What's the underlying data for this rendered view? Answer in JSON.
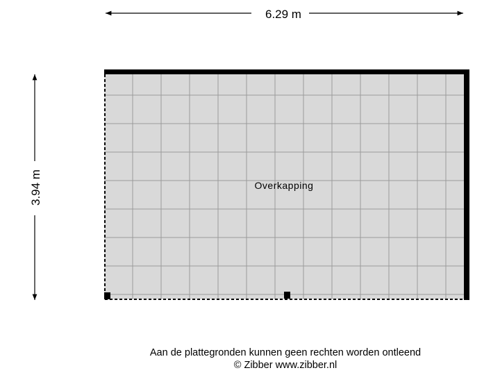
{
  "dimensions": {
    "width_label": "6.29 m",
    "height_label": "3.94 m"
  },
  "rooms": [
    {
      "name": "Overkapping"
    }
  ],
  "footer": {
    "disclaimer": "Aan de plattegronden kunnen geen rechten worden ontleend",
    "copyright": "© Zibber www.zibber.nl"
  },
  "colors": {
    "floor": "#d9d9d9",
    "grid": "#9a9a9a",
    "wall": "#000000"
  }
}
